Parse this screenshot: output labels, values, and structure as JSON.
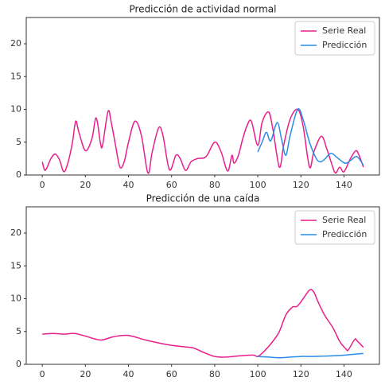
{
  "chart_data": [
    {
      "type": "line",
      "title": "Predicción de actividad normal",
      "xlim": [
        -7.45,
        156.45
      ],
      "xticks": [
        0,
        20,
        40,
        60,
        80,
        100,
        120,
        140
      ],
      "ylim": [
        0,
        24
      ],
      "yticks": [
        0,
        5,
        10,
        15,
        20
      ],
      "grid": false,
      "legend": "upper right",
      "series": [
        {
          "name": "Serie Real",
          "color": "#e91e8c",
          "x": [
            0,
            1,
            2,
            4,
            6,
            8,
            10,
            12,
            14,
            15.5,
            17,
            20,
            23,
            25,
            27,
            28,
            30.5,
            32,
            34,
            36,
            38,
            40,
            43,
            46,
            49,
            51,
            54,
            56,
            59,
            62,
            64,
            66.5,
            69,
            72,
            76,
            80,
            83,
            86,
            88,
            89,
            91,
            93,
            95,
            97,
            100,
            102,
            105,
            107,
            110,
            112,
            115,
            118.5,
            121,
            124,
            126,
            129.5,
            132,
            134,
            136,
            138,
            140,
            143,
            145.5,
            147,
            149
          ],
          "values": [
            2,
            0.8,
            1,
            2.5,
            3.2,
            2.3,
            0.5,
            2,
            5,
            8.2,
            6.5,
            3.7,
            5.5,
            8.7,
            4.8,
            4.6,
            9.7,
            8,
            4.5,
            1.2,
            2,
            5,
            8.2,
            6,
            0.3,
            3.5,
            7.2,
            6,
            0.8,
            3,
            2.5,
            0.7,
            2,
            2.5,
            2.8,
            5,
            3.5,
            0.6,
            3,
            1.8,
            3,
            5.5,
            7.5,
            8.2,
            4.5,
            8,
            9.6,
            7,
            1.2,
            4.5,
            8.5,
            10,
            7.5,
            1.2,
            3.5,
            5.9,
            4,
            2,
            0.3,
            1.2,
            0.5,
            2.5,
            3.7,
            3,
            1.2
          ]
        },
        {
          "name": "Predicción",
          "color": "#2b8ce6",
          "x": [
            100,
            102,
            104,
            106,
            109,
            111,
            113,
            115,
            118.5,
            121,
            124,
            127,
            129,
            131,
            134,
            137,
            140.5,
            143,
            146,
            149
          ],
          "values": [
            3.5,
            5,
            6.5,
            5.2,
            8,
            5.5,
            3,
            6,
            10,
            8.5,
            5,
            2.6,
            2,
            2.4,
            3.3,
            2.6,
            1.8,
            2.2,
            2.8,
            1.5
          ]
        }
      ]
    },
    {
      "type": "line",
      "title": "Predicción de una caída",
      "xlim": [
        -7.45,
        156.45
      ],
      "xticks": [
        0,
        20,
        40,
        60,
        80,
        100,
        120,
        140
      ],
      "ylim": [
        0,
        24
      ],
      "yticks": [
        0,
        5,
        10,
        15,
        20
      ],
      "grid": false,
      "legend": "upper right",
      "series": [
        {
          "name": "Serie Real",
          "color": "#e91e8c",
          "x": [
            0,
            5,
            10,
            15,
            20,
            27,
            33,
            40,
            48,
            58,
            65,
            70,
            75,
            80,
            85,
            92,
            98,
            100,
            103,
            107,
            110,
            113,
            116,
            118,
            120,
            124,
            126,
            128,
            131,
            135,
            138,
            141,
            142,
            145,
            146,
            149
          ],
          "values": [
            4.6,
            4.7,
            4.6,
            4.7,
            4.3,
            3.7,
            4.2,
            4.4,
            3.7,
            3,
            2.7,
            2.5,
            1.8,
            1.2,
            1.1,
            1.3,
            1.4,
            1.2,
            2,
            3.5,
            5,
            7.5,
            8.7,
            8.8,
            9.5,
            11.3,
            11,
            9.5,
            7.5,
            5.5,
            3.5,
            2.3,
            2.2,
            3.8,
            3.6,
            2.6
          ]
        },
        {
          "name": "Predicción",
          "color": "#2b8ce6",
          "x": [
            100,
            105,
            110,
            115,
            120,
            125,
            130,
            135,
            140,
            145,
            149
          ],
          "values": [
            1.2,
            1.1,
            1,
            1.1,
            1.2,
            1.2,
            1.25,
            1.3,
            1.4,
            1.55,
            1.65
          ]
        }
      ]
    }
  ]
}
